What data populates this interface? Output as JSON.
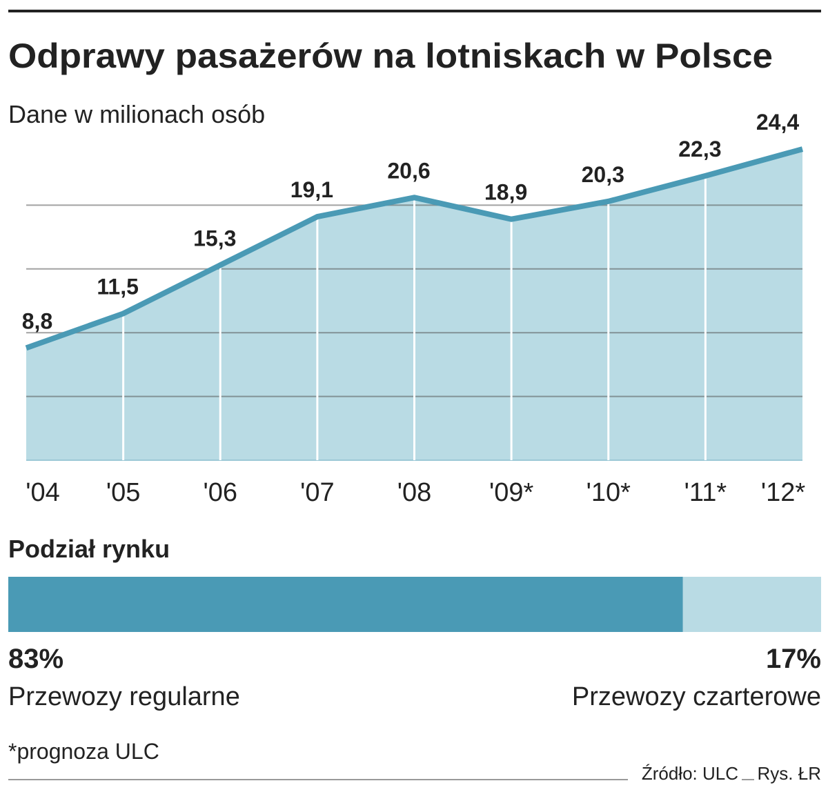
{
  "chart_data": [
    {
      "type": "area",
      "title": "Odprawy pasażerów na lotniskach w Polsce",
      "subtitle": "Dane w milionach osób",
      "categories": [
        "'04",
        "'05",
        "'06",
        "'07",
        "'08",
        "'09*",
        "'10*",
        "'11*",
        "'12*"
      ],
      "values": [
        8.8,
        11.5,
        15.3,
        19.1,
        20.6,
        18.9,
        20.3,
        22.3,
        24.4
      ],
      "value_labels": [
        "8,8",
        "11,5",
        "15,3",
        "19,1",
        "20,6",
        "18,9",
        "20,3",
        "22,3",
        "24,4"
      ],
      "color": "#4a9ab5",
      "fill": "#b9dbe4",
      "ylim": [
        0,
        25
      ],
      "yticks": [
        5,
        10,
        15,
        20
      ],
      "grid": true
    },
    {
      "type": "stacked-bar",
      "title": "Podział rynku",
      "xlim": [
        0,
        100
      ],
      "series": [
        {
          "name": "Przewozy regularne",
          "color": "#4a9ab5",
          "values": [
            83
          ],
          "value_labels": [
            "83%"
          ]
        },
        {
          "name": "Przewozy czarterowe",
          "color": "#b9dbe4",
          "values": [
            17
          ],
          "value_labels": [
            "17%"
          ]
        }
      ]
    }
  ],
  "footer": {
    "note": "*prognoza ULC",
    "source": "Źródło: ULC",
    "credit": "Rys. ŁR"
  }
}
